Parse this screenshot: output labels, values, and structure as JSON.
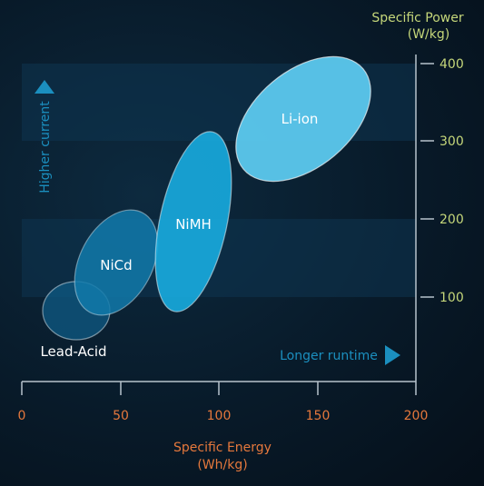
{
  "chart_data": {
    "type": "scatter",
    "title": "",
    "xlabel": [
      "Specific Energy",
      "(Wh/kg)"
    ],
    "ylabel": [
      "Specific Power",
      "(W/kg)"
    ],
    "xlim": [
      0,
      200
    ],
    "ylim": [
      0,
      450
    ],
    "x_ticks": [
      "0",
      "50",
      "100",
      "150",
      "200"
    ],
    "y_ticks": [
      "100",
      "200",
      "300",
      "400"
    ],
    "annotations": {
      "higher_current": "Higher current",
      "longer_runtime": "Longer runtime"
    },
    "series": [
      {
        "name": "Lead-Acid",
        "center": [
          26,
          102
        ],
        "label_color": "#ffffff"
      },
      {
        "name": "NiCd",
        "center": [
          47,
          145
        ],
        "label_color": "#ffffff"
      },
      {
        "name": "NiMH",
        "center": [
          87,
          230
        ],
        "label_color": "#ffffff"
      },
      {
        "name": "Li-ion",
        "center": [
          140,
          347
        ],
        "label_color": "#ffffff"
      }
    ],
    "colors": {
      "lead_acid": "#0e5a84",
      "nicd": "#117aab",
      "nimh": "#18a9dc",
      "liion": "#5cc9ee",
      "axis": "#b7c3cc",
      "x_tick_text": "#e5783c",
      "y_tick_text": "#c5d77a",
      "annotation": "#1b8fbf"
    }
  }
}
